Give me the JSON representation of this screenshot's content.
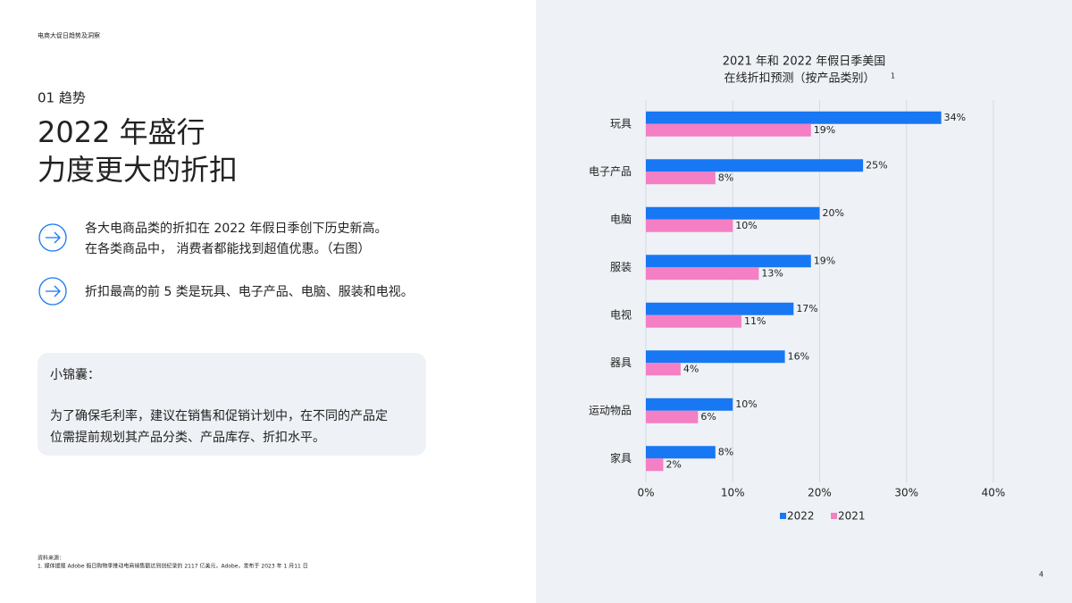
{
  "header": {
    "section": "电商大促日趋势及洞察",
    "page_number": "4"
  },
  "left": {
    "kicker": "01 趋势",
    "title": [
      "2022 年盛行",
      "力度更大的折扣"
    ],
    "bullets": [
      [
        "各大电商品类的折扣在 2022 年假日季创下历史新高。",
        "在各类商品中， 消费者都能找到超值优惠。（右图）"
      ],
      [
        "折扣最高的前 5 类是玩具、电子产品、电脑、服装和电视。"
      ]
    ],
    "tip": {
      "heading": "小锦囊：",
      "lines": [
        "为了确保毛利率，建议在销售和促销计划中，在不同的产品定",
        "位需提前规划其产品分类、产品库存、折扣水平。"
      ]
    },
    "source": [
      "资料来源：",
      "1. 媒体援报 Adobe 假日购物季推动电商销售额达到创纪录的 2117 亿美元，Adobe，发布于 2023 年 1 月11 日"
    ]
  },
  "chart_data": {
    "type": "bar",
    "orientation": "horizontal",
    "title": [
      "2021 年和 2022 年假日季美国",
      "在线折扣预测（按产品类别）"
    ],
    "title_note": "1",
    "categories": [
      "玩具",
      "电子产品",
      "电脑",
      "服装",
      "电视",
      "器具",
      "运动物品",
      "家具"
    ],
    "series": [
      {
        "name": "2022",
        "color": "#1877f2",
        "values": [
          34,
          25,
          20,
          19,
          17,
          16,
          10,
          8
        ],
        "value_labels": [
          "34%",
          "25%",
          "20%",
          "19%",
          "17%",
          "16%",
          "10%",
          "8%"
        ]
      },
      {
        "name": "2021",
        "color": "#f47fc4",
        "values": [
          19,
          8,
          10,
          13,
          11,
          4,
          6,
          2
        ],
        "value_labels": [
          "19%",
          "8%",
          "10%",
          "13%",
          "11%",
          "4%",
          "6%",
          "2%"
        ]
      }
    ],
    "xlim": [
      0,
      40
    ],
    "xticks": [
      {
        "value": 0,
        "label": "0%"
      },
      {
        "value": 10,
        "label": "10%"
      },
      {
        "value": 20,
        "label": "20%"
      },
      {
        "value": 30,
        "label": "30%"
      },
      {
        "value": 40,
        "label": "40%"
      }
    ],
    "grid": true,
    "legend": "bottom"
  }
}
